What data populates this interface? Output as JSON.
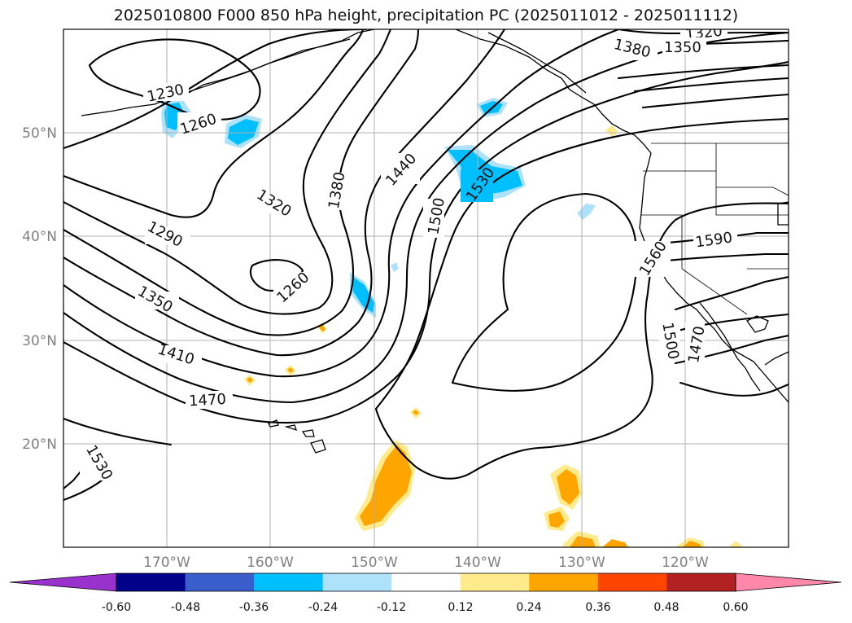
{
  "title": "2025010800 F000 850 hPa height, precipitation PC (2025011012 - 2025011112)",
  "lat_labels": [
    "50°N",
    "40°N",
    "30°N",
    "20°N"
  ],
  "lon_labels": [
    "170°W",
    "160°W",
    "150°W",
    "140°W",
    "130°W",
    "120°W"
  ],
  "contour_labels": [
    "1230",
    "1260",
    "1290",
    "1320",
    "1350",
    "1380",
    "1410",
    "1440",
    "1470",
    "1500",
    "1530",
    "1560",
    "1590",
    "1260",
    "1320",
    "1350",
    "1380",
    "1470",
    "1500",
    "1530"
  ],
  "colorbar": {
    "ticks": [
      "-0.60",
      "-0.48",
      "-0.36",
      "-0.24",
      "-0.12",
      "0.12",
      "0.24",
      "0.36",
      "0.48",
      "0.60"
    ],
    "colors": [
      "#9932CC",
      "#00008B",
      "#3A5FCD",
      "#00BFFF",
      "#ADE2FA",
      "#FFFFFF",
      "#FFEB8C",
      "#FFA500",
      "#FF4500",
      "#B22222",
      "#FF88AA"
    ]
  },
  "colors": {
    "neg_strong": "#00BFFF",
    "neg_light": "#ADE2FA",
    "pos_light": "#FFEB8C",
    "pos_mid": "#FFA500",
    "pos_strong": "#FF4500",
    "grid": "#b0b0b0"
  }
}
